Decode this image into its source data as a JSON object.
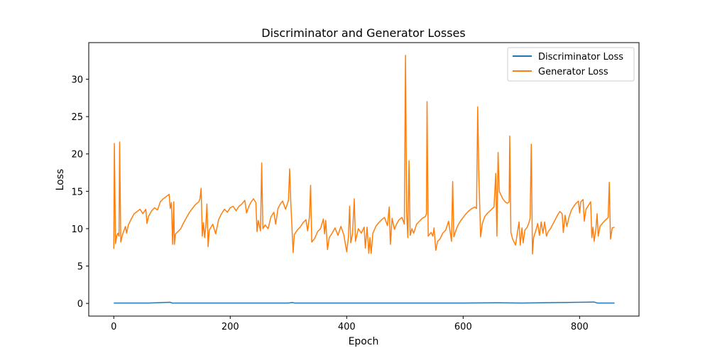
{
  "chart_data": {
    "type": "line",
    "title": "Discriminator and Generator Losses",
    "xlabel": "Epoch",
    "ylabel": "Loss",
    "xlim": [
      -43,
      902
    ],
    "ylim": [
      -1.7,
      34.9
    ],
    "xticks": [
      0,
      200,
      400,
      600,
      800
    ],
    "yticks": [
      0,
      5,
      10,
      15,
      20,
      25,
      30
    ],
    "grid": false,
    "legend_position": "top-right",
    "series": [
      {
        "name": "Discriminator Loss",
        "color": "#1f77b4",
        "points": [
          [
            0,
            0.05
          ],
          [
            60,
            0.05
          ],
          [
            97,
            0.15
          ],
          [
            100,
            0.05
          ],
          [
            200,
            0.05
          ],
          [
            300,
            0.05
          ],
          [
            307,
            0.12
          ],
          [
            310,
            0.05
          ],
          [
            400,
            0.05
          ],
          [
            500,
            0.05
          ],
          [
            600,
            0.05
          ],
          [
            660,
            0.08
          ],
          [
            700,
            0.05
          ],
          [
            825,
            0.18
          ],
          [
            830,
            0.05
          ],
          [
            860,
            0.05
          ]
        ]
      },
      {
        "name": "Generator Loss",
        "color": "#ff7f0e",
        "points": [
          [
            0,
            7.3
          ],
          [
            1,
            21.4
          ],
          [
            3,
            8.0
          ],
          [
            5,
            9.0
          ],
          [
            7,
            9.4
          ],
          [
            9,
            9.0
          ],
          [
            10,
            21.6
          ],
          [
            12,
            8.2
          ],
          [
            15,
            9.2
          ],
          [
            20,
            10.3
          ],
          [
            22,
            9.4
          ],
          [
            25,
            10.5
          ],
          [
            30,
            11.3
          ],
          [
            35,
            12.0
          ],
          [
            40,
            12.3
          ],
          [
            45,
            12.6
          ],
          [
            50,
            12.0
          ],
          [
            55,
            12.6
          ],
          [
            57,
            10.7
          ],
          [
            60,
            11.7
          ],
          [
            65,
            12.4
          ],
          [
            70,
            12.8
          ],
          [
            75,
            12.5
          ],
          [
            80,
            13.6
          ],
          [
            85,
            14.0
          ],
          [
            90,
            14.3
          ],
          [
            95,
            14.6
          ],
          [
            97,
            12.7
          ],
          [
            99,
            13.5
          ],
          [
            101,
            7.9
          ],
          [
            103,
            13.6
          ],
          [
            104,
            7.9
          ],
          [
            106,
            9.3
          ],
          [
            110,
            9.6
          ],
          [
            115,
            10.0
          ],
          [
            120,
            10.8
          ],
          [
            125,
            11.5
          ],
          [
            130,
            12.2
          ],
          [
            135,
            12.7
          ],
          [
            140,
            13.2
          ],
          [
            146,
            13.6
          ],
          [
            148,
            14.0
          ],
          [
            150,
            15.4
          ],
          [
            152,
            9.0
          ],
          [
            154,
            10.8
          ],
          [
            156,
            8.8
          ],
          [
            158,
            10.3
          ],
          [
            160,
            13.3
          ],
          [
            162,
            7.6
          ],
          [
            164,
            9.8
          ],
          [
            170,
            10.6
          ],
          [
            175,
            9.3
          ],
          [
            180,
            11.2
          ],
          [
            185,
            12.0
          ],
          [
            190,
            12.6
          ],
          [
            195,
            12.2
          ],
          [
            200,
            12.8
          ],
          [
            205,
            13.0
          ],
          [
            210,
            12.4
          ],
          [
            215,
            13.0
          ],
          [
            220,
            13.3
          ],
          [
            225,
            13.8
          ],
          [
            228,
            12.1
          ],
          [
            232,
            13.0
          ],
          [
            236,
            13.6
          ],
          [
            240,
            14.0
          ],
          [
            244,
            13.5
          ],
          [
            246,
            9.6
          ],
          [
            248,
            11.1
          ],
          [
            252,
            9.7
          ],
          [
            254,
            18.8
          ],
          [
            256,
            10.0
          ],
          [
            260,
            10.5
          ],
          [
            265,
            10.0
          ],
          [
            270,
            11.6
          ],
          [
            275,
            12.2
          ],
          [
            278,
            10.6
          ],
          [
            282,
            12.7
          ],
          [
            286,
            13.3
          ],
          [
            290,
            13.7
          ],
          [
            295,
            12.6
          ],
          [
            300,
            13.8
          ],
          [
            302,
            18.0
          ],
          [
            304,
            13.5
          ],
          [
            308,
            6.8
          ],
          [
            310,
            9.2
          ],
          [
            315,
            9.8
          ],
          [
            320,
            10.2
          ],
          [
            325,
            10.8
          ],
          [
            330,
            11.2
          ],
          [
            333,
            9.7
          ],
          [
            336,
            11.6
          ],
          [
            338,
            15.8
          ],
          [
            340,
            8.2
          ],
          [
            345,
            8.7
          ],
          [
            350,
            9.6
          ],
          [
            355,
            10.0
          ],
          [
            360,
            11.3
          ],
          [
            362,
            9.3
          ],
          [
            364,
            11.1
          ],
          [
            367,
            7.2
          ],
          [
            370,
            8.8
          ],
          [
            375,
            9.4
          ],
          [
            380,
            10.1
          ],
          [
            385,
            9.1
          ],
          [
            390,
            10.3
          ],
          [
            395,
            9.2
          ],
          [
            400,
            6.9
          ],
          [
            403,
            8.9
          ],
          [
            405,
            13.0
          ],
          [
            407,
            8.1
          ],
          [
            410,
            9.3
          ],
          [
            413,
            14.0
          ],
          [
            415,
            8.3
          ],
          [
            420,
            10.0
          ],
          [
            425,
            9.4
          ],
          [
            430,
            10.2
          ],
          [
            432,
            7.4
          ],
          [
            435,
            10.2
          ],
          [
            438,
            6.7
          ],
          [
            440,
            8.8
          ],
          [
            442,
            6.7
          ],
          [
            445,
            9.4
          ],
          [
            450,
            10.3
          ],
          [
            455,
            10.8
          ],
          [
            460,
            11.2
          ],
          [
            465,
            11.5
          ],
          [
            470,
            10.4
          ],
          [
            473,
            12.9
          ],
          [
            475,
            7.9
          ],
          [
            478,
            11.4
          ],
          [
            482,
            9.9
          ],
          [
            485,
            10.5
          ],
          [
            490,
            11.2
          ],
          [
            495,
            11.5
          ],
          [
            499,
            10.6
          ],
          [
            501,
            33.2
          ],
          [
            503,
            12.1
          ],
          [
            505,
            8.8
          ],
          [
            507,
            19.1
          ],
          [
            509,
            9.1
          ],
          [
            512,
            10.0
          ],
          [
            515,
            9.4
          ],
          [
            520,
            10.6
          ],
          [
            525,
            11.0
          ],
          [
            530,
            11.4
          ],
          [
            535,
            11.6
          ],
          [
            537,
            12.0
          ],
          [
            538,
            27.0
          ],
          [
            540,
            9.0
          ],
          [
            545,
            9.5
          ],
          [
            548,
            9.0
          ],
          [
            550,
            10.1
          ],
          [
            553,
            7.1
          ],
          [
            556,
            8.3
          ],
          [
            560,
            8.6
          ],
          [
            565,
            9.4
          ],
          [
            570,
            9.8
          ],
          [
            575,
            11.0
          ],
          [
            580,
            8.3
          ],
          [
            582,
            16.3
          ],
          [
            584,
            8.9
          ],
          [
            588,
            9.9
          ],
          [
            592,
            10.6
          ],
          [
            596,
            11.1
          ],
          [
            600,
            11.5
          ],
          [
            605,
            12.0
          ],
          [
            610,
            12.4
          ],
          [
            615,
            12.7
          ],
          [
            620,
            12.9
          ],
          [
            623,
            12.7
          ],
          [
            625,
            26.3
          ],
          [
            627,
            17.0
          ],
          [
            630,
            8.9
          ],
          [
            633,
            10.7
          ],
          [
            637,
            11.6
          ],
          [
            641,
            12.0
          ],
          [
            645,
            12.3
          ],
          [
            649,
            12.6
          ],
          [
            653,
            12.9
          ],
          [
            656,
            17.4
          ],
          [
            658,
            9.0
          ],
          [
            660,
            20.2
          ],
          [
            662,
            15.0
          ],
          [
            665,
            14.5
          ],
          [
            668,
            14.0
          ],
          [
            672,
            13.6
          ],
          [
            676,
            13.4
          ],
          [
            679,
            13.6
          ],
          [
            680,
            22.4
          ],
          [
            682,
            9.5
          ],
          [
            685,
            8.6
          ],
          [
            690,
            7.8
          ],
          [
            693,
            9.4
          ],
          [
            696,
            10.9
          ],
          [
            698,
            7.8
          ],
          [
            701,
            10.1
          ],
          [
            703,
            8.1
          ],
          [
            706,
            9.8
          ],
          [
            710,
            10.2
          ],
          [
            713,
            10.8
          ],
          [
            715,
            11.4
          ],
          [
            717,
            21.3
          ],
          [
            719,
            6.6
          ],
          [
            721,
            8.8
          ],
          [
            725,
            9.8
          ],
          [
            728,
            10.7
          ],
          [
            731,
            9.1
          ],
          [
            734,
            10.9
          ],
          [
            737,
            9.4
          ],
          [
            740,
            10.9
          ],
          [
            743,
            9.0
          ],
          [
            746,
            9.6
          ],
          [
            750,
            10.0
          ],
          [
            754,
            10.6
          ],
          [
            758,
            11.2
          ],
          [
            762,
            11.8
          ],
          [
            766,
            12.3
          ],
          [
            770,
            12.0
          ],
          [
            772,
            9.5
          ],
          [
            775,
            11.8
          ],
          [
            778,
            10.3
          ],
          [
            782,
            11.6
          ],
          [
            786,
            12.5
          ],
          [
            790,
            13.0
          ],
          [
            794,
            13.4
          ],
          [
            798,
            13.7
          ],
          [
            800,
            12.1
          ],
          [
            802,
            13.6
          ],
          [
            806,
            13.9
          ],
          [
            808,
            11.0
          ],
          [
            811,
            12.6
          ],
          [
            815,
            13.1
          ],
          [
            819,
            13.6
          ],
          [
            821,
            8.8
          ],
          [
            823,
            10.2
          ],
          [
            825,
            8.3
          ],
          [
            828,
            10.0
          ],
          [
            830,
            12.0
          ],
          [
            832,
            9.0
          ],
          [
            835,
            10.3
          ],
          [
            840,
            10.8
          ],
          [
            845,
            11.2
          ],
          [
            849,
            11.5
          ],
          [
            851,
            16.2
          ],
          [
            853,
            8.6
          ],
          [
            856,
            10.1
          ],
          [
            860,
            10.2
          ]
        ]
      }
    ]
  }
}
